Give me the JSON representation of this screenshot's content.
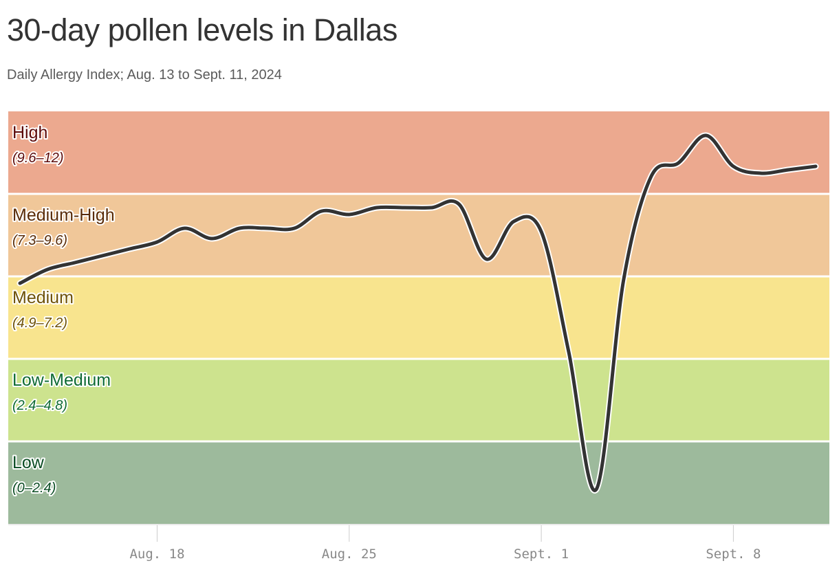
{
  "chart_data": {
    "type": "line",
    "title": "30-day pollen levels in Dallas",
    "subtitle": "Daily Allergy Index; Aug. 13 to Sept. 11, 2024",
    "ylim": [
      0,
      12
    ],
    "xlim": [
      "2024-08-13",
      "2024-09-11"
    ],
    "grid": false,
    "bands": [
      {
        "label": "High",
        "range": "(9.6–12)",
        "min": 9.6,
        "max": 12,
        "fill": "#eca98f",
        "text": "#5c0a0a"
      },
      {
        "label": "Medium-High",
        "range": "(7.3–9.6)",
        "min": 7.2,
        "max": 9.6,
        "fill": "#f0c799",
        "text": "#5a2c08"
      },
      {
        "label": "Medium",
        "range": "(4.9–7.2)",
        "min": 4.8,
        "max": 7.2,
        "fill": "#f8e48e",
        "text": "#6e5208"
      },
      {
        "label": "Low-Medium",
        "range": "(2.4–4.8)",
        "min": 2.4,
        "max": 4.8,
        "fill": "#cde38e",
        "text": "#0f6b34"
      },
      {
        "label": "Low",
        "range": "(0–2.4)",
        "min": 0,
        "max": 2.4,
        "fill": "#9dba9c",
        "text": "#0b4d24"
      }
    ],
    "x_ticks": [
      {
        "date": "2024-08-18",
        "label": "Aug. 18"
      },
      {
        "date": "2024-08-25",
        "label": "Aug. 25"
      },
      {
        "date": "2024-09-01",
        "label": "Sept. 1"
      },
      {
        "date": "2024-09-08",
        "label": "Sept. 8"
      }
    ],
    "series": [
      {
        "color": "#333333",
        "points": [
          [
            "2024-08-13",
            7.0
          ],
          [
            "2024-08-14",
            7.4
          ],
          [
            "2024-08-15",
            7.6
          ],
          [
            "2024-08-16",
            7.8
          ],
          [
            "2024-08-17",
            8.0
          ],
          [
            "2024-08-18",
            8.2
          ],
          [
            "2024-08-19",
            8.6
          ],
          [
            "2024-08-20",
            8.3
          ],
          [
            "2024-08-21",
            8.6
          ],
          [
            "2024-08-22",
            8.6
          ],
          [
            "2024-08-23",
            8.6
          ],
          [
            "2024-08-24",
            9.1
          ],
          [
            "2024-08-25",
            9.0
          ],
          [
            "2024-08-26",
            9.2
          ],
          [
            "2024-08-27",
            9.2
          ],
          [
            "2024-08-28",
            9.2
          ],
          [
            "2024-08-29",
            9.3
          ],
          [
            "2024-08-30",
            7.7
          ],
          [
            "2024-08-31",
            8.8
          ],
          [
            "2024-09-01",
            8.5
          ],
          [
            "2024-09-02",
            5.0
          ],
          [
            "2024-09-03",
            1.0
          ],
          [
            "2024-09-04",
            7.1
          ],
          [
            "2024-09-05",
            10.1
          ],
          [
            "2024-09-06",
            10.5
          ],
          [
            "2024-09-07",
            11.3
          ],
          [
            "2024-09-08",
            10.4
          ],
          [
            "2024-09-09",
            10.2
          ],
          [
            "2024-09-10",
            10.3
          ],
          [
            "2024-09-11",
            10.4
          ]
        ]
      }
    ]
  }
}
